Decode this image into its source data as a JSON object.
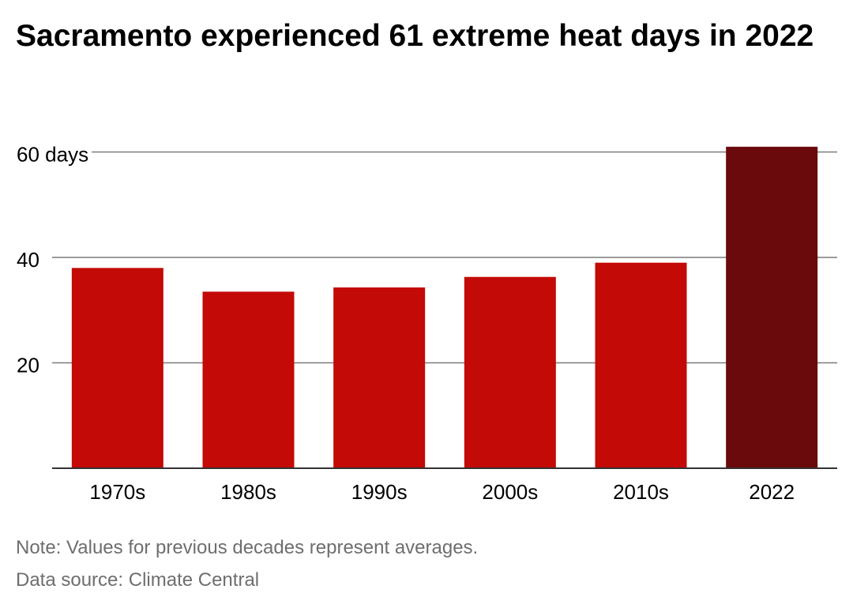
{
  "chart_data": {
    "type": "bar",
    "title": "Sacramento experienced 61 extreme heat days in 2022",
    "categories": [
      "1970s",
      "1980s",
      "1990s",
      "2000s",
      "2010s",
      "2022"
    ],
    "values": [
      38,
      33.5,
      34.3,
      36.3,
      39,
      61
    ],
    "bar_colors": [
      "#c30a06",
      "#c30a06",
      "#c30a06",
      "#c30a06",
      "#c30a06",
      "#6a0a0c"
    ],
    "yticks": [
      {
        "value": 20,
        "label": "20"
      },
      {
        "value": 40,
        "label": "40"
      },
      {
        "value": 60,
        "label": "60 days"
      }
    ],
    "ylim": [
      0,
      65
    ],
    "grid": true,
    "xlabel": "",
    "ylabel": ""
  },
  "footer": {
    "note": "Note: Values for previous decades represent averages.",
    "source": "Data source: Climate Central"
  },
  "colors": {
    "bar": "#c30a06",
    "highlight_bar": "#6a0a0c",
    "gridline": "#7a7a7a",
    "footer_text": "#6e6e6e"
  }
}
